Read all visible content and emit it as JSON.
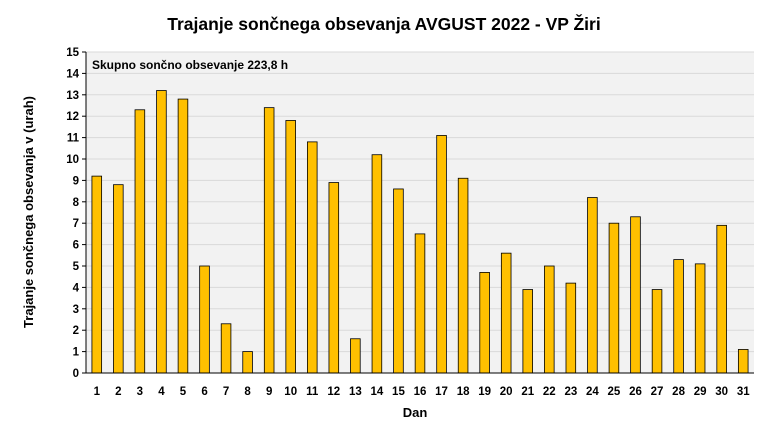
{
  "chart_data": {
    "type": "bar",
    "title": "Trajanje  sončnega obsevanja  AVGUST 2022 - VP Žiri",
    "xlabel": "Dan",
    "ylabel": "Trajanje  sončnega obsevanja  v (urah)",
    "annotation": "Skupno sončno obsevanje 223,8 h",
    "categories": [
      "1",
      "2",
      "3",
      "4",
      "5",
      "6",
      "7",
      "8",
      "9",
      "10",
      "11",
      "12",
      "13",
      "14",
      "15",
      "16",
      "17",
      "18",
      "19",
      "20",
      "21",
      "22",
      "23",
      "24",
      "25",
      "26",
      "27",
      "28",
      "29",
      "30",
      "31"
    ],
    "values": [
      9.2,
      8.8,
      12.3,
      13.2,
      12.8,
      5.0,
      2.3,
      1.0,
      12.4,
      11.8,
      10.8,
      8.9,
      1.6,
      10.2,
      8.6,
      6.5,
      11.1,
      9.1,
      4.7,
      5.6,
      3.9,
      5.0,
      4.2,
      8.2,
      7.0,
      7.3,
      3.9,
      5.3,
      5.1,
      6.9,
      1.1
    ],
    "yticks": [
      "0",
      "1",
      "2",
      "3",
      "4",
      "5",
      "6",
      "7",
      "8",
      "9",
      "10",
      "11",
      "12",
      "13",
      "14",
      "15"
    ],
    "ylim": [
      0,
      15
    ],
    "grid": true,
    "bar_color": "#FFC000",
    "bar_edge_color": "#000000",
    "plot_background": "#F2F2F2",
    "grid_color": "#D9D9D9"
  }
}
